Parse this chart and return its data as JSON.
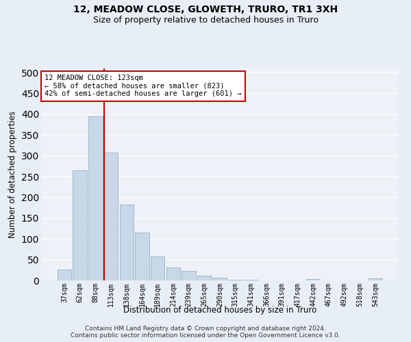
{
  "title": "12, MEADOW CLOSE, GLOWETH, TRURO, TR1 3XH",
  "subtitle": "Size of property relative to detached houses in Truro",
  "xlabel": "Distribution of detached houses by size in Truro",
  "ylabel": "Number of detached properties",
  "footer_line1": "Contains HM Land Registry data © Crown copyright and database right 2024.",
  "footer_line2": "Contains public sector information licensed under the Open Government Licence v3.0.",
  "categories": [
    "37sqm",
    "62sqm",
    "88sqm",
    "113sqm",
    "138sqm",
    "164sqm",
    "189sqm",
    "214sqm",
    "239sqm",
    "265sqm",
    "290sqm",
    "315sqm",
    "341sqm",
    "366sqm",
    "391sqm",
    "417sqm",
    "442sqm",
    "467sqm",
    "492sqm",
    "518sqm",
    "543sqm"
  ],
  "values": [
    27,
    265,
    395,
    308,
    182,
    115,
    57,
    32,
    23,
    12,
    6,
    2,
    1,
    0,
    0,
    0,
    4,
    0,
    0,
    0,
    5
  ],
  "bar_color": "#c8d8e8",
  "bar_edge_color": "#a0b8d0",
  "vline_color": "#cc0000",
  "vline_x_index": 3,
  "annotation_title": "12 MEADOW CLOSE: 123sqm",
  "annotation_line1": "← 58% of detached houses are smaller (823)",
  "annotation_line2": "42% of semi-detached houses are larger (601) →",
  "annotation_box_color": "#ffffff",
  "annotation_box_edge": "#cc0000",
  "ylim": [
    0,
    510
  ],
  "yticks": [
    0,
    50,
    100,
    150,
    200,
    250,
    300,
    350,
    400,
    450,
    500
  ],
  "bg_color": "#e8eef5",
  "plot_bg_color": "#eef2f8",
  "grid_color": "#ffffff",
  "title_fontsize": 10,
  "subtitle_fontsize": 9,
  "tick_fontsize": 7,
  "label_fontsize": 8.5,
  "footer_fontsize": 6.5,
  "annotation_fontsize": 7.5
}
